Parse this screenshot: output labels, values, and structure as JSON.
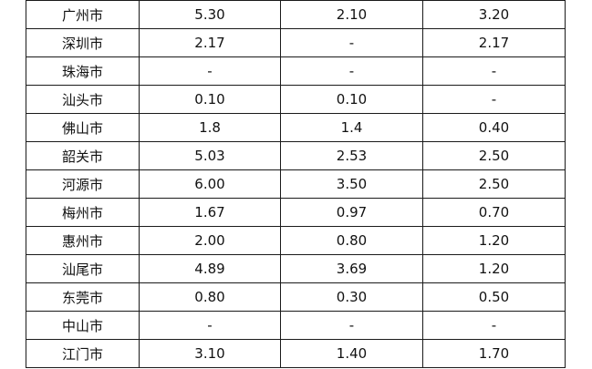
{
  "table": {
    "rows": [
      [
        "广州市",
        "5.30",
        "2.10",
        "3.20"
      ],
      [
        "深圳市",
        "2.17",
        "-",
        "2.17"
      ],
      [
        "珠海市",
        "-",
        "-",
        "-"
      ],
      [
        "汕头市",
        "0.10",
        "0.10",
        "-"
      ],
      [
        "佛山市",
        "1.8",
        "1.4",
        "0.40"
      ],
      [
        "韶关市",
        "5.03",
        "2.53",
        "2.50"
      ],
      [
        "河源市",
        "6.00",
        "3.50",
        "2.50"
      ],
      [
        "梅州市",
        "1.67",
        "0.97",
        "0.70"
      ],
      [
        "惠州市",
        "2.00",
        "0.80",
        "1.20"
      ],
      [
        "汕尾市",
        "4.89",
        "3.69",
        "1.20"
      ],
      [
        "东莞市",
        "0.80",
        "0.30",
        "0.50"
      ],
      [
        "中山市",
        "-",
        "-",
        "-"
      ],
      [
        "江门市",
        "3.10",
        "1.40",
        "1.70"
      ]
    ]
  }
}
